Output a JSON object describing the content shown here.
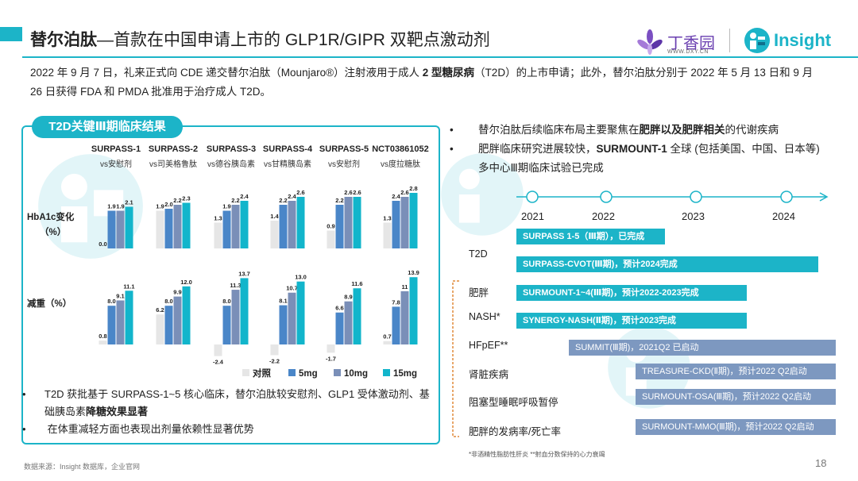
{
  "title": {
    "main": "替尔泊肽",
    "sub": "—首款在中国申请上市的 GLP1R/GIPR 双靶点激动剂"
  },
  "logos": {
    "dxy_name": "丁香园",
    "dxy_url": "WWW.DXY.CN",
    "insight_name": "Insight"
  },
  "intro": {
    "part1": "2022 年 9 月 7 日，礼来正式向 CDE 递交替尔泊肽（Mounjaro®）注射液用于成人 ",
    "bold": "2 型糖尿病",
    "part2": "（T2D）的上市申请；此外，替尔泊肽分别于 2022 年 5 月 13 日和 9 月 26 日获得 FDA 和 PMDA 批准用于治疗成人 T2D。"
  },
  "panel_title": "T2D关键Ⅲ期临床结果",
  "chart_data": {
    "type": "bar",
    "groups": [
      {
        "trial": "SURPASS-1",
        "comparator": "vs安慰剂"
      },
      {
        "trial": "SURPASS-2",
        "comparator": "vs司美格鲁肽"
      },
      {
        "trial": "SURPASS-3",
        "comparator": "vs德谷胰岛素"
      },
      {
        "trial": "SURPASS-4",
        "comparator": "vs甘精胰岛素"
      },
      {
        "trial": "SURPASS-5",
        "comparator": "vs安慰剂"
      },
      {
        "trial": "NCT03861052",
        "comparator": "vs度拉糖肽"
      }
    ],
    "series": [
      {
        "name": "对照",
        "color": "#e6e6e6"
      },
      {
        "name": "5mg",
        "color": "#4a86c8"
      },
      {
        "name": "10mg",
        "color": "#7a8fb8"
      },
      {
        "name": "15mg",
        "color": "#12b5cb"
      }
    ],
    "panels": [
      {
        "label": "HbA1c变化（%）",
        "values": [
          [
            0.0,
            1.9,
            1.9,
            2.1
          ],
          [
            1.9,
            2.0,
            2.2,
            2.3
          ],
          [
            1.3,
            1.9,
            2.2,
            2.4
          ],
          [
            1.4,
            2.2,
            2.4,
            2.6
          ],
          [
            0.9,
            2.2,
            2.6,
            2.6
          ],
          [
            1.3,
            2.4,
            2.6,
            2.8
          ]
        ],
        "labels": [
          [
            "0.0",
            "1.9",
            "1.9",
            "2.1"
          ],
          [
            "1.9",
            "2.0",
            "2.2",
            "2.3"
          ],
          [
            "1.3",
            "1.9",
            "2.2",
            "2.4"
          ],
          [
            "1.4",
            "2.2",
            "2.4",
            "2.6"
          ],
          [
            "0.9",
            "2.2",
            "2.6",
            "2.6"
          ],
          [
            "1.3",
            "2.4",
            "2.6",
            "2.8"
          ]
        ]
      },
      {
        "label": "减重（%）",
        "values": [
          [
            0.8,
            8.0,
            9.1,
            11.1
          ],
          [
            6.2,
            8.0,
            9.9,
            12.0
          ],
          [
            -2.4,
            8.0,
            11.3,
            13.7
          ],
          [
            -2.2,
            8.1,
            10.7,
            13.0
          ],
          [
            -1.7,
            6.6,
            8.9,
            11.6
          ],
          [
            0.7,
            7.8,
            11.0,
            13.9
          ]
        ],
        "labels": [
          [
            "0.8",
            "8.0",
            "9.1",
            "11.1"
          ],
          [
            "6.2",
            "8.0",
            "9.9",
            "12.0"
          ],
          [
            "-2.4",
            "8.0",
            "11.3",
            "13.7"
          ],
          [
            "-2.2",
            "8.1",
            "10.7",
            "13.0"
          ],
          [
            "-1.7",
            "6.6",
            "8.9",
            "11.6"
          ],
          [
            "0.7",
            "7.8",
            "11",
            "13.9"
          ]
        ]
      }
    ]
  },
  "left_notes": [
    {
      "text": "T2D 获批基于 SURPASS-1~5 核心临床，替尔泊肽较安慰剂、GLP1 受体激动剂、基础胰岛素",
      "bold": "降糖效果显著"
    },
    {
      "text": "在体重减轻方面也表现出剂量依赖性显著优势",
      "bold": ""
    }
  ],
  "right_bullets": [
    {
      "pre": "替尔泊肽后续临床布局主要聚焦在",
      "bold": "肥胖以及肥胖相关",
      "post": "的代谢疾病"
    },
    {
      "pre": "肥胖临床研究进展较快，",
      "bold": "SURMOUNT-1",
      "post": " 全球 (包括美国、中国、日本等) 多中心Ⅲ期临床试验已完成"
    }
  ],
  "timeline": {
    "years": [
      "2021",
      "2022",
      "2023",
      "2024"
    ]
  },
  "indications": [
    "T2D",
    "肥胖",
    "NASH*",
    "HFpEF**",
    "肾脏疾病",
    "阻塞型睡眠呼吸暂停",
    "肥胖的发病率/死亡率"
  ],
  "trials": [
    {
      "label": "SURPASS 1-5（Ⅲ期），已完成",
      "style": "dark"
    },
    {
      "label": "SURPASS-CVOT(Ⅲ期)，预计2024完成",
      "style": "dark"
    },
    {
      "label": "SURMOUNT-1~4(Ⅲ期)，预计2022-2023完成",
      "style": "dark"
    },
    {
      "label": "SYNERGY-NASH(Ⅱ期)，预计2023完成",
      "style": "dark"
    },
    {
      "label": "SUMMIT(Ⅲ期)，2021Q2 已启动",
      "style": "light"
    },
    {
      "label": "TREASURE-CKD(Ⅱ期)，预计2022 Q2启动",
      "style": "light"
    },
    {
      "label": "SURMOUNT-OSA(Ⅲ期)，预计2022 Q2启动",
      "style": "light"
    },
    {
      "label": "SURMOUNT-MMO(Ⅲ期)，预计2022 Q2启动",
      "style": "light"
    }
  ],
  "footnote": "*非酒精性脂肪性肝炎 **射血分数保持的心力衰竭",
  "source": "数据来源：Insight 数据库，企业官网",
  "page_number": "18"
}
